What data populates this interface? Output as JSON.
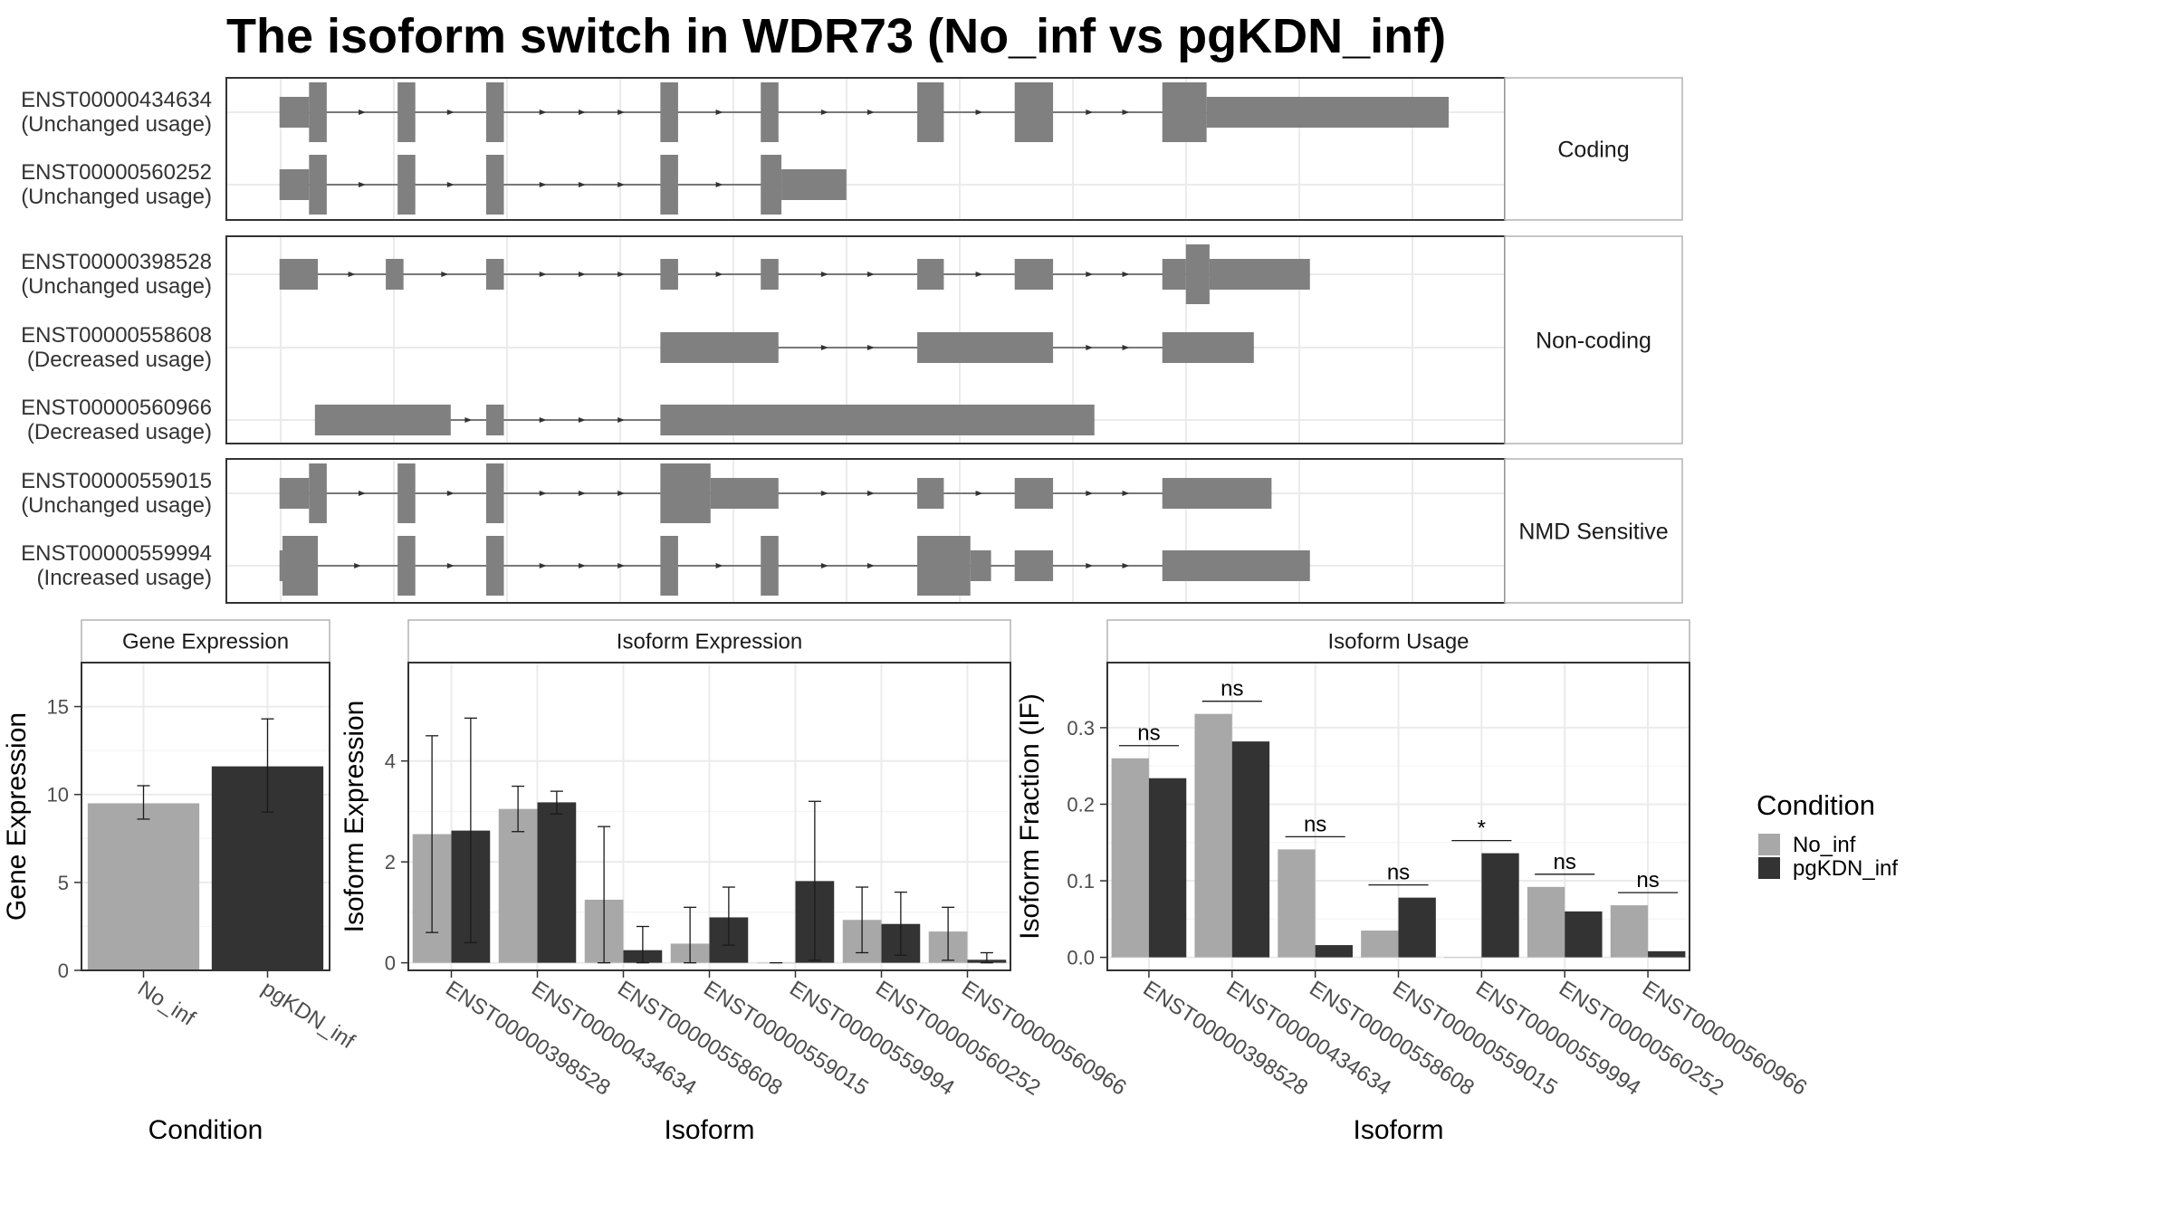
{
  "title": "The isoform switch in WDR73 (No_inf vs pgKDN_inf)",
  "colors": {
    "no_inf": "#a8a8a8",
    "pgkdn_inf": "#333333",
    "transcript": "#808080",
    "grid": "#ebebeb",
    "panel_border": "#333333",
    "strip_border": "#b3b3b3"
  },
  "chart_data": [
    {
      "type": "gene-structure",
      "name": "Isoform structures",
      "groups": [
        {
          "label": "Coding",
          "transcripts": [
            {
              "id": "ENST00000434634",
              "usage": "(Unchanged usage)",
              "exons": [
                {
                  "start": 0.0,
                  "end": 1.0,
                  "kind": "u"
                },
                {
                  "start": 1.0,
                  "end": 1.6,
                  "kind": "c"
                },
                {
                  "start": 4.0,
                  "end": 4.6,
                  "kind": "c"
                },
                {
                  "start": 7.0,
                  "end": 7.6,
                  "kind": "c"
                },
                {
                  "start": 12.9,
                  "end": 13.5,
                  "kind": "c"
                },
                {
                  "start": 16.3,
                  "end": 16.9,
                  "kind": "c"
                },
                {
                  "start": 21.6,
                  "end": 22.5,
                  "kind": "c"
                },
                {
                  "start": 24.9,
                  "end": 26.2,
                  "kind": "c"
                },
                {
                  "start": 29.9,
                  "end": 31.4,
                  "kind": "c"
                },
                {
                  "start": 31.4,
                  "end": 39.6,
                  "kind": "u"
                }
              ]
            },
            {
              "id": "ENST00000560252",
              "usage": "(Unchanged usage)",
              "exons": [
                {
                  "start": 0.0,
                  "end": 1.0,
                  "kind": "u"
                },
                {
                  "start": 1.0,
                  "end": 1.6,
                  "kind": "c"
                },
                {
                  "start": 4.0,
                  "end": 4.6,
                  "kind": "c"
                },
                {
                  "start": 7.0,
                  "end": 7.6,
                  "kind": "c"
                },
                {
                  "start": 12.9,
                  "end": 13.5,
                  "kind": "c"
                },
                {
                  "start": 16.3,
                  "end": 17.0,
                  "kind": "c"
                },
                {
                  "start": 17.0,
                  "end": 19.2,
                  "kind": "u"
                }
              ]
            }
          ]
        },
        {
          "label": "Non-coding",
          "transcripts": [
            {
              "id": "ENST00000398528",
              "usage": "(Unchanged usage)",
              "exons": [
                {
                  "start": 0.0,
                  "end": 1.3,
                  "kind": "u"
                },
                {
                  "start": 3.6,
                  "end": 4.2,
                  "kind": "u"
                },
                {
                  "start": 7.0,
                  "end": 7.6,
                  "kind": "u"
                },
                {
                  "start": 12.9,
                  "end": 13.5,
                  "kind": "u"
                },
                {
                  "start": 16.3,
                  "end": 16.9,
                  "kind": "u"
                },
                {
                  "start": 21.6,
                  "end": 22.5,
                  "kind": "u"
                },
                {
                  "start": 24.9,
                  "end": 26.2,
                  "kind": "u"
                },
                {
                  "start": 29.9,
                  "end": 30.7,
                  "kind": "u"
                },
                {
                  "start": 30.7,
                  "end": 31.5,
                  "kind": "c"
                },
                {
                  "start": 31.5,
                  "end": 34.9,
                  "kind": "u"
                }
              ]
            },
            {
              "id": "ENST00000558608",
              "usage": "(Decreased usage)",
              "exons": [
                {
                  "start": 12.9,
                  "end": 16.9,
                  "kind": "u"
                },
                {
                  "start": 21.6,
                  "end": 26.2,
                  "kind": "u"
                },
                {
                  "start": 29.9,
                  "end": 33.0,
                  "kind": "u"
                }
              ]
            },
            {
              "id": "ENST00000560966",
              "usage": "(Decreased usage)",
              "exons": [
                {
                  "start": 1.2,
                  "end": 5.8,
                  "kind": "u"
                },
                {
                  "start": 7.0,
                  "end": 7.6,
                  "kind": "u"
                },
                {
                  "start": 12.9,
                  "end": 27.6,
                  "kind": "u"
                }
              ]
            }
          ]
        },
        {
          "label": "NMD Sensitive",
          "transcripts": [
            {
              "id": "ENST00000559015",
              "usage": "(Unchanged usage)",
              "exons": [
                {
                  "start": 0.0,
                  "end": 1.0,
                  "kind": "u"
                },
                {
                  "start": 1.0,
                  "end": 1.6,
                  "kind": "c"
                },
                {
                  "start": 4.0,
                  "end": 4.6,
                  "kind": "c"
                },
                {
                  "start": 7.0,
                  "end": 7.6,
                  "kind": "c"
                },
                {
                  "start": 12.9,
                  "end": 14.6,
                  "kind": "c"
                },
                {
                  "start": 14.6,
                  "end": 16.9,
                  "kind": "u"
                },
                {
                  "start": 21.6,
                  "end": 22.5,
                  "kind": "u"
                },
                {
                  "start": 24.9,
                  "end": 26.2,
                  "kind": "u"
                },
                {
                  "start": 29.9,
                  "end": 33.6,
                  "kind": "u"
                }
              ]
            },
            {
              "id": "ENST00000559994",
              "usage": "(Increased usage)",
              "exons": [
                {
                  "start": 0.0,
                  "end": 0.1,
                  "kind": "u"
                },
                {
                  "start": 0.1,
                  "end": 1.3,
                  "kind": "c"
                },
                {
                  "start": 4.0,
                  "end": 4.6,
                  "kind": "c"
                },
                {
                  "start": 7.0,
                  "end": 7.6,
                  "kind": "c"
                },
                {
                  "start": 12.9,
                  "end": 13.5,
                  "kind": "c"
                },
                {
                  "start": 16.3,
                  "end": 16.9,
                  "kind": "c"
                },
                {
                  "start": 21.6,
                  "end": 23.4,
                  "kind": "c"
                },
                {
                  "start": 23.4,
                  "end": 24.1,
                  "kind": "u"
                },
                {
                  "start": 24.9,
                  "end": 26.2,
                  "kind": "u"
                },
                {
                  "start": 29.9,
                  "end": 34.9,
                  "kind": "u"
                }
              ]
            }
          ]
        }
      ],
      "x_range": [
        -1.8,
        41.5
      ],
      "grid": true
    },
    {
      "type": "bar",
      "name": "Gene Expression",
      "panel_title": "Gene Expression",
      "categories": [
        "No_inf",
        "pgKDN_inf"
      ],
      "values": [
        9.5,
        11.6
      ],
      "error_low": [
        8.6,
        9.0
      ],
      "error_high": [
        10.5,
        14.3
      ],
      "xlabel": "Condition",
      "ylabel": "Gene Expression",
      "ylim": [
        0,
        17.5
      ],
      "yticks": [
        0,
        5,
        10,
        15
      ],
      "grid": true
    },
    {
      "type": "bar",
      "name": "Isoform Expression",
      "panel_title": "Isoform Expression",
      "categories": [
        "ENST00000398528",
        "ENST00000434634",
        "ENST00000558608",
        "ENST00000559015",
        "ENST00000559994",
        "ENST00000560252",
        "ENST00000560966"
      ],
      "series": [
        {
          "name": "No_inf",
          "values": [
            2.55,
            3.05,
            1.25,
            0.38,
            0.0,
            0.85,
            0.62
          ],
          "error_low": [
            0.6,
            2.6,
            0.0,
            0.0,
            0.0,
            0.2,
            0.05
          ],
          "error_high": [
            4.5,
            3.5,
            2.7,
            1.1,
            0.0,
            1.5,
            1.1
          ]
        },
        {
          "name": "pgKDN_inf",
          "values": [
            2.62,
            3.18,
            0.25,
            0.9,
            1.62,
            0.77,
            0.06
          ],
          "error_low": [
            0.4,
            2.95,
            0.0,
            0.35,
            0.05,
            0.15,
            0.0
          ],
          "error_high": [
            4.85,
            3.4,
            0.72,
            1.5,
            3.2,
            1.4,
            0.2
          ]
        }
      ],
      "xlabel": "Isoform",
      "ylabel": "Isoform Expression",
      "ylim": [
        -0.15,
        5.95
      ],
      "yticks": [
        0,
        2,
        4
      ],
      "grid": true
    },
    {
      "type": "bar",
      "name": "Isoform Usage",
      "panel_title": "Isoform Usage",
      "categories": [
        "ENST00000398528",
        "ENST00000434634",
        "ENST00000558608",
        "ENST00000559015",
        "ENST00000559994",
        "ENST00000560252",
        "ENST00000560966"
      ],
      "series": [
        {
          "name": "No_inf",
          "values": [
            0.26,
            0.318,
            0.141,
            0.035,
            0.0,
            0.092,
            0.068
          ]
        },
        {
          "name": "pgKDN_inf",
          "values": [
            0.234,
            0.282,
            0.016,
            0.078,
            0.136,
            0.06,
            0.008
          ]
        }
      ],
      "significance": [
        "ns",
        "ns",
        "ns",
        "ns",
        "*",
        "ns",
        "ns"
      ],
      "xlabel": "Isoform",
      "ylabel": "Isoform Fraction (IF)",
      "ylim": [
        -0.017,
        0.385
      ],
      "yticks": [
        0.0,
        0.1,
        0.2,
        0.3
      ],
      "grid": true
    }
  ],
  "legend": {
    "title": "Condition",
    "entries": [
      "No_inf",
      "pgKDN_inf"
    ],
    "placement": "right"
  }
}
